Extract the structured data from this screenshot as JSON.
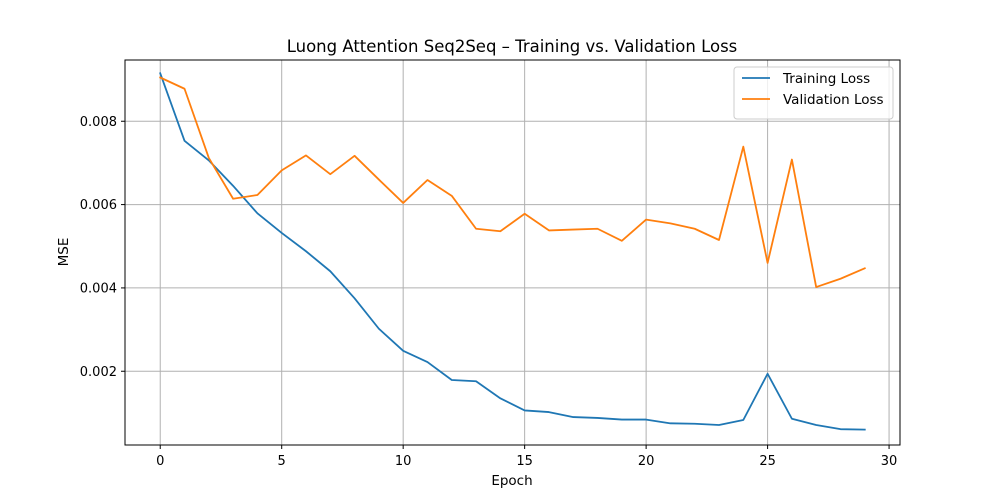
{
  "chart_data": {
    "type": "line",
    "title": "Luong Attention Seq2Seq – Training vs. Validation Loss",
    "xlabel": "Epoch",
    "ylabel": "MSE",
    "xlim": [
      -1.45,
      30.45
    ],
    "ylim": [
      0.00023,
      0.00947
    ],
    "xticks": [
      0,
      5,
      10,
      15,
      20,
      25,
      30
    ],
    "xtick_labels": [
      "0",
      "5",
      "10",
      "15",
      "20",
      "25",
      "30"
    ],
    "yticks": [
      0.002,
      0.004,
      0.006,
      0.008
    ],
    "ytick_labels": [
      "0.002",
      "0.004",
      "0.006",
      "0.008"
    ],
    "grid": true,
    "legend_position": "top-right",
    "x": [
      0,
      1,
      2,
      3,
      4,
      5,
      6,
      7,
      8,
      9,
      10,
      11,
      12,
      13,
      14,
      15,
      16,
      17,
      18,
      19,
      20,
      21,
      22,
      23,
      24,
      25,
      26,
      27,
      28,
      29
    ],
    "series": [
      {
        "name": "Training Loss",
        "color": "#1f77b4",
        "values": [
          0.00915,
          0.00753,
          0.00706,
          0.00645,
          0.00579,
          0.00532,
          0.00488,
          0.0044,
          0.00375,
          0.00302,
          0.00249,
          0.00222,
          0.00179,
          0.00176,
          0.00135,
          0.00106,
          0.00102,
          0.0009,
          0.00088,
          0.00084,
          0.00084,
          0.00075,
          0.00074,
          0.00071,
          0.00083,
          0.00194,
          0.00086,
          0.00071,
          0.00061,
          0.0006
        ]
      },
      {
        "name": "Validation Loss",
        "color": "#ff7f0e",
        "values": [
          0.00905,
          0.00878,
          0.00712,
          0.00614,
          0.00623,
          0.00682,
          0.00718,
          0.00673,
          0.00717,
          0.0066,
          0.00604,
          0.00659,
          0.00621,
          0.00542,
          0.00536,
          0.00578,
          0.00538,
          0.0054,
          0.00542,
          0.00513,
          0.00564,
          0.00555,
          0.00542,
          0.00515,
          0.00739,
          0.0046,
          0.00708,
          0.00402,
          0.00422,
          0.00447
        ]
      }
    ]
  }
}
